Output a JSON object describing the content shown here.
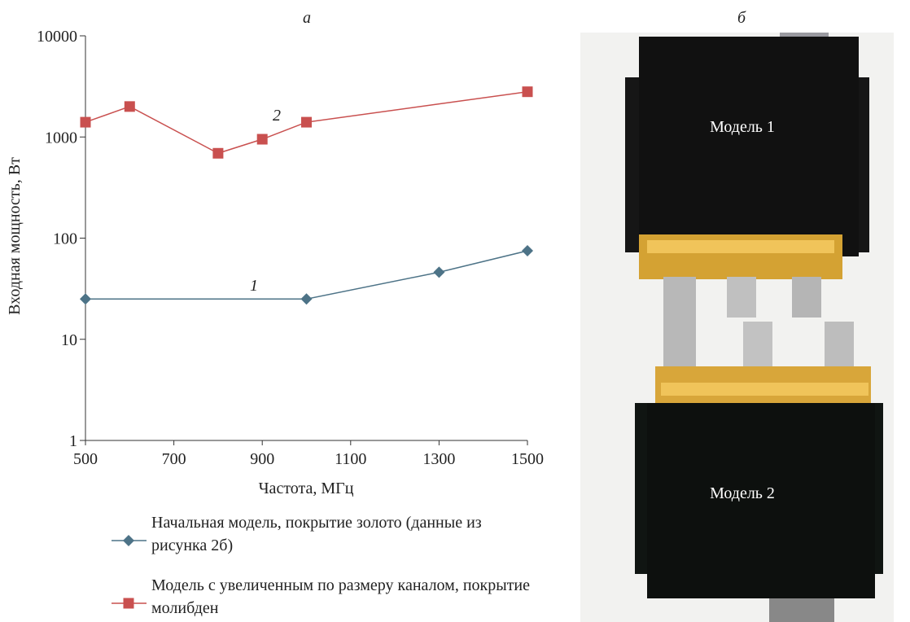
{
  "chart_data": {
    "type": "line",
    "title": "а",
    "x_label": "Частота, МГц",
    "y_label": "Входная мощность, Вт",
    "log_y": true,
    "xlim": [
      500,
      1500
    ],
    "ylim": [
      1,
      10000
    ],
    "xticks": [
      500,
      700,
      900,
      1100,
      1300,
      1500
    ],
    "yticks": [
      1,
      10,
      100,
      1000,
      10000
    ],
    "annotations": [
      "1",
      "2"
    ],
    "series": [
      {
        "name": "Начальная модель, покрытие золото (данные из рисунка 2б)",
        "color": "#4d7387",
        "marker": "diamond",
        "x": [
          500,
          1000,
          1300,
          1500
        ],
        "values": [
          25,
          25,
          46,
          75
        ]
      },
      {
        "name": "Модель с увеличенным по размеру каналом, покрытие молибден",
        "color": "#c9504f",
        "marker": "square",
        "x": [
          500,
          600,
          800,
          900,
          1000,
          1500
        ],
        "values": [
          1400,
          2000,
          690,
          950,
          1400,
          2800
        ]
      }
    ]
  },
  "photo": {
    "title": "б",
    "labels": [
      "Модель 1",
      "Модель 2"
    ]
  }
}
